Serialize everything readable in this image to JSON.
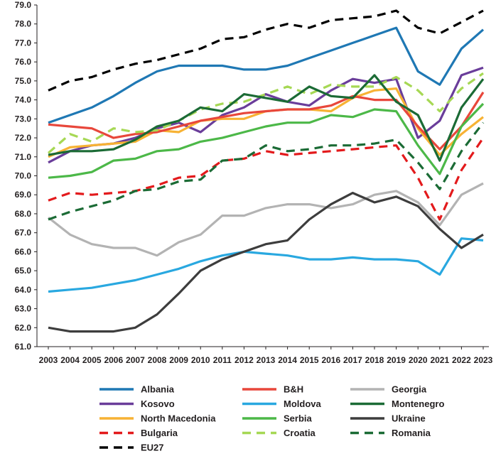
{
  "chart_data": {
    "type": "line",
    "title": "",
    "xlabel": "",
    "ylabel": "",
    "ylim": [
      61.0,
      79.0
    ],
    "y_ticks": [
      "61.0",
      "62.0",
      "63.0",
      "64.0",
      "65.0",
      "66.0",
      "67.0",
      "68.0",
      "69.0",
      "70.0",
      "71.0",
      "72.0",
      "73.0",
      "74.0",
      "75.0",
      "76.0",
      "77.0",
      "78.0",
      "79.0"
    ],
    "x": [
      "2003",
      "2004",
      "2005",
      "2006",
      "2007",
      "2008",
      "2009",
      "2010",
      "2011",
      "2012",
      "2013",
      "2014",
      "2015",
      "2016",
      "2017",
      "2018",
      "2019",
      "2020",
      "2021",
      "2022",
      "2023"
    ],
    "grid": false,
    "legend_position": "bottom",
    "series": [
      {
        "name": "Albania",
        "color": "#1f78b4",
        "dash": "solid",
        "values": [
          72.8,
          73.2,
          73.6,
          74.2,
          74.9,
          75.5,
          75.8,
          75.8,
          75.8,
          75.6,
          75.6,
          75.8,
          76.2,
          76.6,
          77.0,
          77.4,
          77.8,
          75.5,
          74.8,
          76.7,
          77.7
        ]
      },
      {
        "name": "Kosovo",
        "color": "#6a3d9a",
        "dash": "solid",
        "values": [
          70.7,
          71.3,
          71.6,
          71.7,
          72.0,
          72.5,
          72.8,
          72.3,
          73.2,
          73.6,
          74.3,
          73.9,
          73.7,
          74.5,
          75.1,
          74.9,
          75.1,
          72.0,
          72.9,
          75.3,
          75.7
        ]
      },
      {
        "name": "North Macedonia",
        "color": "#f7b234",
        "dash": "solid",
        "values": [
          71.0,
          71.5,
          71.6,
          71.7,
          71.8,
          72.4,
          72.3,
          72.9,
          73.0,
          73.0,
          73.4,
          73.5,
          73.5,
          73.4,
          74.1,
          74.5,
          74.6,
          72.5,
          71.1,
          72.2,
          73.1
        ]
      },
      {
        "name": "Bulgaria",
        "color": "#e31a1c",
        "dash": "dashed",
        "values": [
          68.7,
          69.1,
          69.0,
          69.1,
          69.2,
          69.5,
          69.9,
          70.0,
          70.8,
          70.9,
          71.3,
          71.1,
          71.2,
          71.3,
          71.4,
          71.5,
          71.6,
          69.9,
          67.7,
          70.3,
          72.0
        ]
      },
      {
        "name": "EU27",
        "color": "#000000",
        "dash": "dashed",
        "values": [
          74.5,
          75.0,
          75.2,
          75.6,
          75.9,
          76.1,
          76.4,
          76.7,
          77.2,
          77.3,
          77.7,
          78.0,
          77.8,
          78.2,
          78.3,
          78.4,
          78.7,
          77.8,
          77.5,
          78.1,
          78.7
        ]
      },
      {
        "name": "B&H",
        "color": "#e8473b",
        "dash": "solid",
        "values": [
          72.7,
          72.6,
          72.5,
          72.0,
          72.2,
          72.3,
          72.6,
          72.9,
          73.1,
          73.3,
          73.4,
          73.5,
          73.5,
          73.7,
          74.2,
          74.0,
          74.0,
          72.6,
          71.4,
          72.6,
          74.4
        ]
      },
      {
        "name": "Moldova",
        "color": "#29a8e0",
        "dash": "solid",
        "values": [
          63.9,
          64.0,
          64.1,
          64.3,
          64.5,
          64.8,
          65.1,
          65.5,
          65.8,
          66.0,
          65.9,
          65.8,
          65.6,
          65.6,
          65.7,
          65.6,
          65.6,
          65.5,
          64.8,
          66.7,
          66.6
        ]
      },
      {
        "name": "Serbia",
        "color": "#4cb848",
        "dash": "solid",
        "values": [
          69.9,
          70.0,
          70.2,
          70.8,
          70.9,
          71.3,
          71.4,
          71.8,
          72.0,
          72.3,
          72.6,
          72.8,
          72.8,
          73.2,
          73.1,
          73.5,
          73.4,
          71.6,
          70.1,
          72.6,
          73.8
        ]
      },
      {
        "name": "Croatia",
        "color": "#a6d854",
        "dash": "dashed",
        "values": [
          71.2,
          72.2,
          71.8,
          72.5,
          72.3,
          72.4,
          72.9,
          73.5,
          73.8,
          73.9,
          74.3,
          74.7,
          74.3,
          74.8,
          74.7,
          74.7,
          75.2,
          74.5,
          73.4,
          74.6,
          75.4
        ]
      },
      {
        "name": "Georgia",
        "color": "#b3b3b3",
        "dash": "solid",
        "values": [
          67.8,
          66.9,
          66.4,
          66.2,
          66.2,
          65.8,
          66.5,
          66.9,
          67.9,
          67.9,
          68.3,
          68.5,
          68.5,
          68.3,
          68.5,
          69.0,
          69.2,
          68.6,
          67.4,
          69.0,
          69.6
        ]
      },
      {
        "name": "Montenegro",
        "color": "#1b6b35",
        "dash": "solid",
        "values": [
          71.1,
          71.3,
          71.3,
          71.4,
          71.9,
          72.6,
          72.9,
          73.6,
          73.4,
          74.3,
          74.1,
          73.9,
          74.7,
          74.2,
          74.1,
          75.3,
          73.9,
          73.2,
          70.8,
          73.6,
          75.1
        ]
      },
      {
        "name": "Ukraine",
        "color": "#3d3d3d",
        "dash": "solid",
        "values": [
          62.0,
          61.8,
          61.8,
          61.8,
          62.0,
          62.7,
          63.8,
          65.0,
          65.6,
          66.0,
          66.4,
          66.6,
          67.7,
          68.5,
          69.1,
          68.6,
          68.9,
          68.4,
          67.2,
          66.2,
          66.9
        ]
      },
      {
        "name": "Romania",
        "color": "#1b6b35",
        "dash": "dashed",
        "values": [
          67.7,
          68.1,
          68.4,
          68.7,
          69.2,
          69.3,
          69.7,
          69.8,
          70.8,
          70.9,
          71.6,
          71.3,
          71.4,
          71.6,
          71.6,
          71.7,
          71.9,
          70.7,
          69.3,
          71.3,
          72.8
        ]
      }
    ]
  }
}
